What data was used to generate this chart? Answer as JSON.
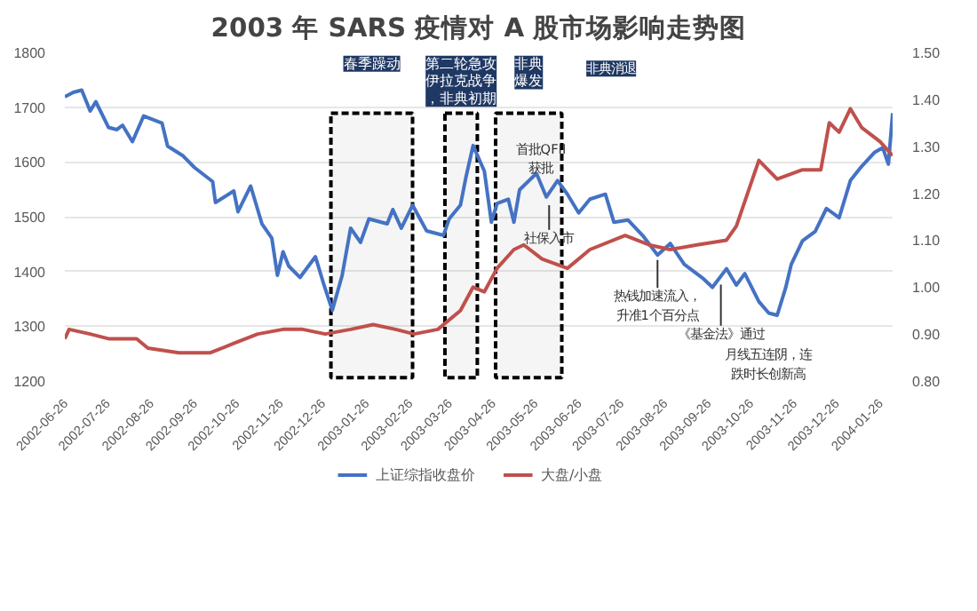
{
  "chart_data": {
    "type": "line",
    "title": "2003 年 SARS 疫情对 A 股市场影响走势图",
    "xlim": [
      "2002-06-26",
      "2004-02-04"
    ],
    "xticks": [
      "2002-06-26",
      "2002-07-26",
      "2002-08-26",
      "2002-09-26",
      "2002-10-26",
      "2002-11-26",
      "2002-12-26",
      "2003-01-26",
      "2003-02-26",
      "2003-03-26",
      "2003-04-26",
      "2003-05-26",
      "2003-06-26",
      "2003-07-26",
      "2003-08-26",
      "2003-09-26",
      "2003-10-26",
      "2003-11-26",
      "2003-12-26",
      "2004-01-26"
    ],
    "ylim": [
      1200,
      1800
    ],
    "yticks": [
      1200,
      1300,
      1400,
      1500,
      1600,
      1700,
      1800
    ],
    "y2lim": [
      0.8,
      1.5
    ],
    "y2ticks": [
      {
        "value": 0.8,
        "label": "0.80"
      },
      {
        "value": 0.9,
        "label": "0.90"
      },
      {
        "value": 1.0,
        "label": "1.00"
      },
      {
        "value": 1.1,
        "label": "1.10"
      },
      {
        "value": 1.2,
        "label": "1.20"
      },
      {
        "value": 1.3,
        "label": "1.30"
      },
      {
        "value": 1.4,
        "label": "1.40"
      },
      {
        "value": 1.5,
        "label": "1.50"
      }
    ],
    "grid": "y",
    "legend": "bottom",
    "line_style": "solid",
    "series": [
      {
        "name": "上证综指收盘价",
        "color": "#4472c4",
        "x": [
          "2002-06-26",
          "2002-07-02",
          "2002-07-08",
          "2002-07-14",
          "2002-07-18",
          "2002-07-27",
          "2002-08-02",
          "2002-08-06",
          "2002-08-13",
          "2002-08-21",
          "2002-09-03",
          "2002-09-07",
          "2002-09-18",
          "2002-09-26",
          "2002-10-09",
          "2002-10-11",
          "2002-10-24",
          "2002-10-27",
          "2002-11-05",
          "2002-11-13",
          "2002-11-20",
          "2002-11-24",
          "2002-11-28",
          "2002-12-02",
          "2002-12-10",
          "2002-12-21",
          "2002-12-27",
          "2003-01-02",
          "2003-01-09",
          "2003-01-15",
          "2003-01-22",
          "2003-01-28",
          "2003-02-10",
          "2003-02-14",
          "2003-02-20",
          "2003-02-28",
          "2003-03-10",
          "2003-03-22",
          "2003-03-26",
          "2003-04-03",
          "2003-04-07",
          "2003-04-12",
          "2003-04-20",
          "2003-04-25",
          "2003-04-29",
          "2003-05-07",
          "2003-05-11",
          "2003-05-15",
          "2003-05-27",
          "2003-06-03",
          "2003-06-11",
          "2003-06-18",
          "2003-06-26",
          "2003-07-04",
          "2003-07-15",
          "2003-07-21",
          "2003-07-31",
          "2003-08-11",
          "2003-08-21",
          "2003-08-30",
          "2003-09-09",
          "2003-09-22",
          "2003-09-29",
          "2003-10-09",
          "2003-10-16",
          "2003-10-22",
          "2003-11-01",
          "2003-11-08",
          "2003-11-14",
          "2003-11-20",
          "2003-11-24",
          "2003-12-02",
          "2003-12-11",
          "2003-12-19",
          "2003-12-28",
          "2004-01-05",
          "2004-01-13",
          "2004-01-22",
          "2004-01-28",
          "2004-02-01",
          "2004-02-04"
        ],
        "values": [
          1719,
          1727,
          1731,
          1693,
          1710,
          1663,
          1659,
          1667,
          1637,
          1684,
          1671,
          1629,
          1611,
          1590,
          1564,
          1526,
          1547,
          1509,
          1556,
          1487,
          1461,
          1393,
          1436,
          1410,
          1389,
          1427,
          1376,
          1329,
          1393,
          1479,
          1453,
          1496,
          1487,
          1513,
          1479,
          1521,
          1474,
          1466,
          1496,
          1521,
          1573,
          1630,
          1583,
          1490,
          1524,
          1532,
          1490,
          1549,
          1579,
          1536,
          1566,
          1541,
          1507,
          1532,
          1541,
          1490,
          1494,
          1464,
          1430,
          1451,
          1413,
          1388,
          1371,
          1405,
          1375,
          1396,
          1345,
          1324,
          1320,
          1370,
          1413,
          1456,
          1473,
          1515,
          1498,
          1566,
          1592,
          1617,
          1626,
          1596,
          1689
        ]
      },
      {
        "name": "大盘/小盘",
        "color": "#c0504d",
        "axis": "y2",
        "x": [
          "2002-06-26",
          "2002-06-29",
          "2002-07-14",
          "2002-07-27",
          "2002-08-16",
          "2002-08-24",
          "2002-09-15",
          "2002-10-07",
          "2002-10-24",
          "2002-11-10",
          "2002-11-28",
          "2002-12-12",
          "2002-12-28",
          "2003-01-15",
          "2003-01-31",
          "2003-02-16",
          "2003-03-01",
          "2003-03-18",
          "2003-04-03",
          "2003-04-12",
          "2003-04-20",
          "2003-04-29",
          "2003-05-11",
          "2003-05-18",
          "2003-05-31",
          "2003-06-18",
          "2003-07-04",
          "2003-07-29",
          "2003-08-15",
          "2003-08-30",
          "2003-09-18",
          "2003-10-09",
          "2003-10-16",
          "2003-10-24",
          "2003-11-01",
          "2003-11-14",
          "2003-12-02",
          "2003-12-15",
          "2003-12-21",
          "2003-12-28",
          "2004-01-05",
          "2004-01-13",
          "2004-01-26",
          "2004-02-04"
        ],
        "values": [
          0.89,
          0.91,
          0.9,
          0.89,
          0.89,
          0.87,
          0.86,
          0.86,
          0.88,
          0.9,
          0.91,
          0.91,
          0.9,
          0.91,
          0.92,
          0.91,
          0.9,
          0.91,
          0.95,
          1.0,
          0.99,
          1.04,
          1.08,
          1.09,
          1.06,
          1.04,
          1.08,
          1.11,
          1.09,
          1.08,
          1.09,
          1.1,
          1.13,
          1.2,
          1.27,
          1.23,
          1.25,
          1.25,
          1.35,
          1.33,
          1.38,
          1.34,
          1.31,
          1.28
        ]
      }
    ],
    "bands": [
      {
        "axis": "x",
        "from": "2003-01-01",
        "to": "2003-02-28",
        "label": "春季躁动",
        "color": "#000000"
      },
      {
        "axis": "x",
        "from": "2003-03-23",
        "to": "2003-04-15",
        "label": "第二轮急攻伊拉克战争，非典初期",
        "color": "#000000"
      },
      {
        "axis": "x",
        "from": "2003-04-28",
        "to": "2003-06-14",
        "label": "非典爆发",
        "color": "#000000"
      }
    ],
    "annotations": [
      "非典消退",
      "首批QFII获批",
      {
        "text": "社保入市",
        "x": "2003-06-05",
        "y": 1530
      },
      {
        "text": "热钱加速流入，升准1个百分点",
        "x": "2003-08-21",
        "y": 1430
      },
      {
        "text": "《基金法》通过",
        "x": "2003-10-05",
        "y": 1385
      },
      "月线五连阴，连跌时长创新高"
    ]
  }
}
